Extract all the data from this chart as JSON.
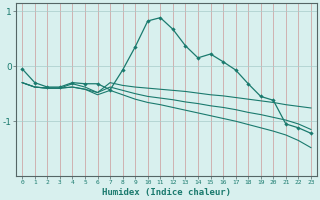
{
  "x": [
    0,
    1,
    2,
    3,
    4,
    5,
    6,
    7,
    8,
    9,
    10,
    11,
    12,
    13,
    14,
    15,
    16,
    17,
    18,
    19,
    20,
    21,
    22,
    23
  ],
  "line1": [
    -0.05,
    -0.3,
    -0.38,
    -0.38,
    -0.3,
    -0.32,
    -0.32,
    -0.43,
    -0.07,
    0.35,
    0.82,
    0.88,
    0.67,
    0.37,
    0.15,
    0.22,
    0.08,
    -0.07,
    -0.32,
    -0.55,
    -0.62,
    -1.05,
    -1.12,
    -1.22
  ],
  "line2": [
    -0.3,
    -0.38,
    -0.4,
    -0.4,
    -0.32,
    -0.38,
    -0.48,
    -0.3,
    -0.35,
    -0.38,
    -0.4,
    -0.42,
    -0.44,
    -0.46,
    -0.49,
    -0.52,
    -0.54,
    -0.57,
    -0.6,
    -0.63,
    -0.66,
    -0.7,
    -0.73,
    -0.76
  ],
  "line3": [
    -0.3,
    -0.38,
    -0.4,
    -0.4,
    -0.38,
    -0.42,
    -0.48,
    -0.38,
    -0.44,
    -0.5,
    -0.55,
    -0.58,
    -0.61,
    -0.65,
    -0.68,
    -0.72,
    -0.75,
    -0.79,
    -0.84,
    -0.88,
    -0.93,
    -0.98,
    -1.05,
    -1.15
  ],
  "line4": [
    -0.3,
    -0.38,
    -0.4,
    -0.4,
    -0.38,
    -0.42,
    -0.52,
    -0.44,
    -0.52,
    -0.6,
    -0.66,
    -0.7,
    -0.75,
    -0.8,
    -0.85,
    -0.9,
    -0.95,
    -1.0,
    -1.06,
    -1.12,
    -1.18,
    -1.25,
    -1.35,
    -1.48
  ],
  "line_color": "#1a7a6e",
  "bg_color": "#d8f0ee",
  "grid_major_color_x": "#c08080",
  "grid_major_color_y": "#b8d8d4",
  "xlabel": "Humidex (Indice chaleur)",
  "yticks": [
    -1,
    0,
    1
  ],
  "ylim": [
    -1.8,
    1.15
  ],
  "xlim": [
    -0.5,
    23.5
  ]
}
